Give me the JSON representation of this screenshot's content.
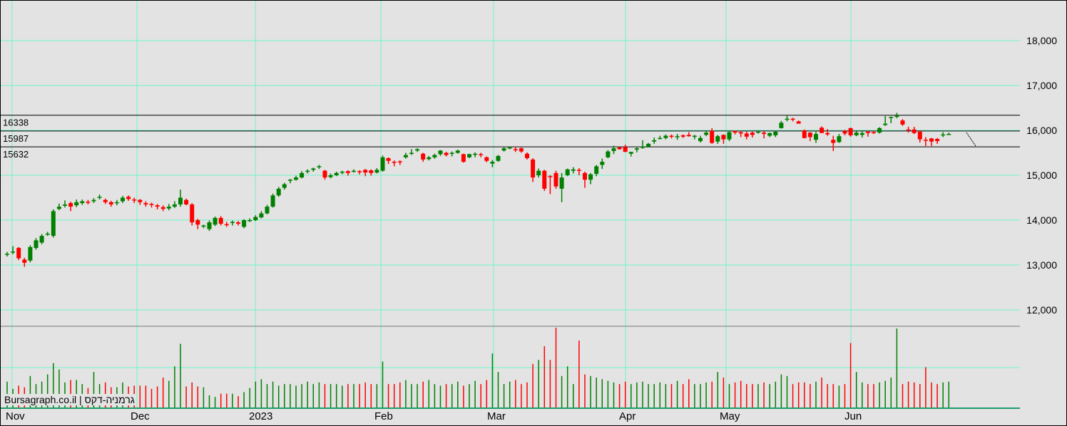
{
  "chart_data": {
    "type": "candlestick",
    "title": "",
    "ylim": [
      11700,
      18800
    ],
    "y_ticks": [
      "12,000",
      "13,000",
      "14,000",
      "15,000",
      "16,000",
      "17,000",
      "18,000"
    ],
    "y_tick_values": [
      12000,
      13000,
      14000,
      15000,
      16000,
      17000,
      18000
    ],
    "x_labels": [
      "Nov",
      "Dec",
      "2023",
      "Feb",
      "Mar",
      "Apr",
      "May",
      "Jun"
    ],
    "grid": true,
    "colors": {
      "up": "#008000",
      "down": "#ff0000",
      "grid": "#6ff5c8",
      "level": "#000000",
      "background": "#e3e3e3"
    },
    "levels": [
      16338,
      15987,
      15632
    ],
    "level_labels": [
      "16338",
      "15987",
      "15632"
    ],
    "ohlc": [
      [
        13230,
        13290,
        13190,
        13250
      ],
      [
        13280,
        13420,
        13240,
        13300
      ],
      [
        13380,
        13400,
        13110,
        13150
      ],
      [
        13120,
        13160,
        12960,
        13050
      ],
      [
        13100,
        13440,
        13060,
        13400
      ],
      [
        13380,
        13600,
        13340,
        13550
      ],
      [
        13500,
        13690,
        13460,
        13650
      ],
      [
        13690,
        13740,
        13650,
        13700
      ],
      [
        13650,
        14240,
        13610,
        14200
      ],
      [
        14250,
        14370,
        14220,
        14300
      ],
      [
        14320,
        14440,
        14280,
        14350
      ],
      [
        14380,
        14410,
        14200,
        14300
      ],
      [
        14330,
        14460,
        14290,
        14400
      ],
      [
        14380,
        14460,
        14340,
        14420
      ],
      [
        14410,
        14450,
        14350,
        14400
      ],
      [
        14420,
        14490,
        14380,
        14450
      ],
      [
        14500,
        14570,
        14460,
        14520
      ],
      [
        14450,
        14480,
        14360,
        14400
      ],
      [
        14400,
        14430,
        14300,
        14350
      ],
      [
        14380,
        14450,
        14330,
        14400
      ],
      [
        14420,
        14540,
        14380,
        14500
      ],
      [
        14520,
        14550,
        14430,
        14470
      ],
      [
        14460,
        14500,
        14380,
        14450
      ],
      [
        14450,
        14470,
        14340,
        14400
      ],
      [
        14380,
        14420,
        14300,
        14350
      ],
      [
        14360,
        14390,
        14280,
        14340
      ],
      [
        14330,
        14360,
        14240,
        14300
      ],
      [
        14290,
        14330,
        14200,
        14250
      ],
      [
        14260,
        14360,
        14220,
        14300
      ],
      [
        14300,
        14420,
        14270,
        14350
      ],
      [
        14350,
        14680,
        14300,
        14500
      ],
      [
        14450,
        14480,
        14330,
        14350
      ],
      [
        14350,
        14380,
        13880,
        13950
      ],
      [
        14000,
        14030,
        13800,
        13900
      ],
      [
        13880,
        13900,
        13820,
        13880
      ],
      [
        13800,
        13990,
        13760,
        13950
      ],
      [
        13900,
        14080,
        13870,
        14050
      ],
      [
        14050,
        14090,
        13880,
        13920
      ],
      [
        13910,
        13960,
        13850,
        13900
      ],
      [
        13950,
        13990,
        13880,
        13960
      ],
      [
        13950,
        13980,
        13880,
        13920
      ],
      [
        13850,
        14020,
        13820,
        14000
      ],
      [
        14000,
        14040,
        13960,
        14000
      ],
      [
        14000,
        14110,
        13980,
        14070
      ],
      [
        14060,
        14200,
        14040,
        14150
      ],
      [
        14150,
        14340,
        14130,
        14300
      ],
      [
        14300,
        14590,
        14280,
        14550
      ],
      [
        14550,
        14740,
        14520,
        14700
      ],
      [
        14720,
        14830,
        14680,
        14800
      ],
      [
        14880,
        14920,
        14820,
        14900
      ],
      [
        14900,
        14990,
        14880,
        14950
      ],
      [
        14950,
        15090,
        14930,
        15050
      ],
      [
        15080,
        15130,
        15040,
        15100
      ],
      [
        15120,
        15170,
        15080,
        15150
      ],
      [
        15180,
        15230,
        15140,
        15200
      ],
      [
        15100,
        15120,
        14900,
        14950
      ],
      [
        14960,
        15040,
        14930,
        15000
      ],
      [
        15000,
        15080,
        14980,
        15050
      ],
      [
        15060,
        15100,
        15020,
        15080
      ],
      [
        15090,
        15110,
        14990,
        15050
      ],
      [
        15080,
        15130,
        15060,
        15100
      ],
      [
        15090,
        15110,
        15020,
        15070
      ],
      [
        15120,
        15140,
        14980,
        15060
      ],
      [
        15110,
        15130,
        14990,
        15050
      ],
      [
        15060,
        15160,
        15040,
        15120
      ],
      [
        15100,
        15440,
        15080,
        15400
      ],
      [
        15380,
        15400,
        15250,
        15320
      ],
      [
        15300,
        15330,
        15200,
        15280
      ],
      [
        15310,
        15330,
        15230,
        15300
      ],
      [
        15400,
        15500,
        15370,
        15450
      ],
      [
        15480,
        15580,
        15450,
        15500
      ],
      [
        15550,
        15600,
        15520,
        15580
      ],
      [
        15480,
        15500,
        15300,
        15350
      ],
      [
        15360,
        15430,
        15330,
        15400
      ],
      [
        15400,
        15480,
        15370,
        15450
      ],
      [
        15470,
        15560,
        15430,
        15550
      ],
      [
        15500,
        15520,
        15420,
        15450
      ],
      [
        15480,
        15530,
        15420,
        15500
      ],
      [
        15500,
        15570,
        15480,
        15550
      ],
      [
        15470,
        15480,
        15280,
        15300
      ],
      [
        15400,
        15480,
        15380,
        15470
      ],
      [
        15480,
        15510,
        15400,
        15480
      ],
      [
        15470,
        15500,
        15400,
        15450
      ],
      [
        15400,
        15420,
        15290,
        15320
      ],
      [
        15260,
        15340,
        15180,
        15300
      ],
      [
        15320,
        15450,
        15300,
        15430
      ],
      [
        15550,
        15620,
        15530,
        15600
      ],
      [
        15600,
        15640,
        15580,
        15620
      ],
      [
        15580,
        15640,
        15520,
        15560
      ],
      [
        15600,
        15620,
        15500,
        15530
      ],
      [
        15480,
        15510,
        15350,
        15380
      ],
      [
        15350,
        15380,
        14850,
        14950
      ],
      [
        15000,
        15150,
        14950,
        15100
      ],
      [
        15100,
        15120,
        14650,
        14700
      ],
      [
        14980,
        15000,
        14580,
        14970
      ],
      [
        15050,
        15100,
        14700,
        14750
      ],
      [
        14700,
        15050,
        14400,
        14950
      ],
      [
        15000,
        15150,
        14980,
        15130
      ],
      [
        15100,
        15180,
        15040,
        15130
      ],
      [
        15120,
        15160,
        15000,
        15110
      ],
      [
        15050,
        15080,
        14720,
        14900
      ],
      [
        14900,
        15050,
        14800,
        15020
      ],
      [
        15030,
        15230,
        14980,
        15200
      ],
      [
        15230,
        15370,
        15140,
        15300
      ],
      [
        15400,
        15560,
        15380,
        15530
      ],
      [
        15540,
        15660,
        15470,
        15600
      ],
      [
        15620,
        15630,
        15570,
        15580
      ],
      [
        15630,
        15680,
        15520,
        15520
      ],
      [
        15480,
        15520,
        15420,
        15520
      ],
      [
        15570,
        15620,
        15510,
        15600
      ],
      [
        15610,
        15780,
        15590,
        15640
      ],
      [
        15640,
        15720,
        15620,
        15700
      ],
      [
        15750,
        15840,
        15700,
        15780
      ],
      [
        15820,
        15880,
        15800,
        15830
      ],
      [
        15830,
        15910,
        15800,
        15880
      ],
      [
        15880,
        15910,
        15820,
        15860
      ],
      [
        15860,
        15920,
        15790,
        15870
      ],
      [
        15890,
        15910,
        15830,
        15860
      ],
      [
        15900,
        15960,
        15860,
        15870
      ],
      [
        15870,
        15900,
        15800,
        15880
      ],
      [
        15760,
        15880,
        15730,
        15830
      ],
      [
        15900,
        16000,
        15870,
        15950
      ],
      [
        15990,
        16050,
        15700,
        15720
      ],
      [
        15750,
        15900,
        15700,
        15870
      ],
      [
        15900,
        15910,
        15700,
        15800
      ],
      [
        15800,
        15990,
        15760,
        15960
      ],
      [
        15990,
        15990,
        15910,
        15950
      ],
      [
        15960,
        15990,
        15850,
        15930
      ],
      [
        15930,
        15970,
        15800,
        15860
      ],
      [
        15950,
        15970,
        15840,
        15900
      ],
      [
        15960,
        16000,
        15930,
        15970
      ],
      [
        15950,
        15980,
        15820,
        15920
      ],
      [
        15880,
        15950,
        15850,
        15940
      ],
      [
        15890,
        15990,
        15850,
        15970
      ],
      [
        16050,
        16210,
        16040,
        16170
      ],
      [
        16250,
        16330,
        16200,
        16260
      ],
      [
        16260,
        16280,
        16200,
        16240
      ],
      [
        16200,
        16220,
        16150,
        16150
      ],
      [
        16000,
        16020,
        15820,
        15830
      ],
      [
        15950,
        15960,
        15760,
        15850
      ],
      [
        15790,
        15990,
        15720,
        15920
      ],
      [
        16060,
        16090,
        15940,
        15940
      ],
      [
        15940,
        16030,
        15880,
        15910
      ],
      [
        15790,
        15880,
        15540,
        15720
      ],
      [
        15740,
        15920,
        15720,
        15870
      ],
      [
        15990,
        16010,
        15890,
        15930
      ],
      [
        16050,
        16060,
        15860,
        15890
      ],
      [
        15890,
        15980,
        15870,
        15950
      ],
      [
        15900,
        16000,
        15840,
        15940
      ],
      [
        15970,
        15990,
        15860,
        15940
      ],
      [
        15960,
        15990,
        15920,
        15950
      ],
      [
        15950,
        16070,
        15930,
        16050
      ],
      [
        16120,
        16320,
        16100,
        16150
      ],
      [
        16300,
        16310,
        16160,
        16300
      ],
      [
        16300,
        16390,
        16270,
        16330
      ],
      [
        16220,
        16250,
        16100,
        16130
      ],
      [
        16020,
        16080,
        15950,
        16010
      ],
      [
        16020,
        16080,
        15920,
        15940
      ],
      [
        15970,
        16000,
        15730,
        15800
      ],
      [
        15790,
        15850,
        15650,
        15780
      ],
      [
        15820,
        15830,
        15650,
        15750
      ],
      [
        15810,
        15830,
        15700,
        15760
      ],
      [
        15900,
        15960,
        15850,
        15910
      ],
      [
        15920,
        15950,
        15900,
        15920
      ]
    ],
    "volume_relative": [
      33,
      24,
      28,
      26,
      40,
      30,
      33,
      42,
      56,
      48,
      32,
      35,
      35,
      30,
      25,
      45,
      30,
      32,
      26,
      26,
      32,
      27,
      28,
      28,
      28,
      24,
      27,
      38,
      34,
      52,
      80,
      27,
      32,
      27,
      26,
      16,
      14,
      18,
      18,
      18,
      15,
      20,
      25,
      33,
      36,
      30,
      33,
      28,
      30,
      30,
      28,
      30,
      33,
      30,
      32,
      30,
      30,
      30,
      28,
      30,
      30,
      30,
      32,
      30,
      30,
      58,
      30,
      30,
      32,
      35,
      30,
      30,
      33,
      35,
      30,
      28,
      30,
      30,
      33,
      28,
      30,
      34,
      30,
      35,
      68,
      45,
      30,
      33,
      35,
      30,
      32,
      55,
      60,
      77,
      60,
      100,
      40,
      52,
      30,
      84,
      42,
      40,
      38,
      36,
      34,
      32,
      30,
      33,
      30,
      32,
      33,
      30,
      30,
      32,
      30,
      30,
      34,
      30,
      36,
      30,
      30,
      32,
      33,
      45,
      38,
      30,
      32,
      34,
      30,
      30,
      30,
      32,
      30,
      33,
      42,
      40,
      30,
      32,
      32,
      30,
      33,
      38,
      30,
      30,
      28,
      30,
      81,
      45,
      32,
      30,
      30,
      32,
      34,
      38,
      99,
      30,
      33,
      32,
      30,
      51,
      32,
      30,
      32,
      33
    ]
  },
  "watermark": "Bursagraph.co.il | גרמניה-דקס"
}
